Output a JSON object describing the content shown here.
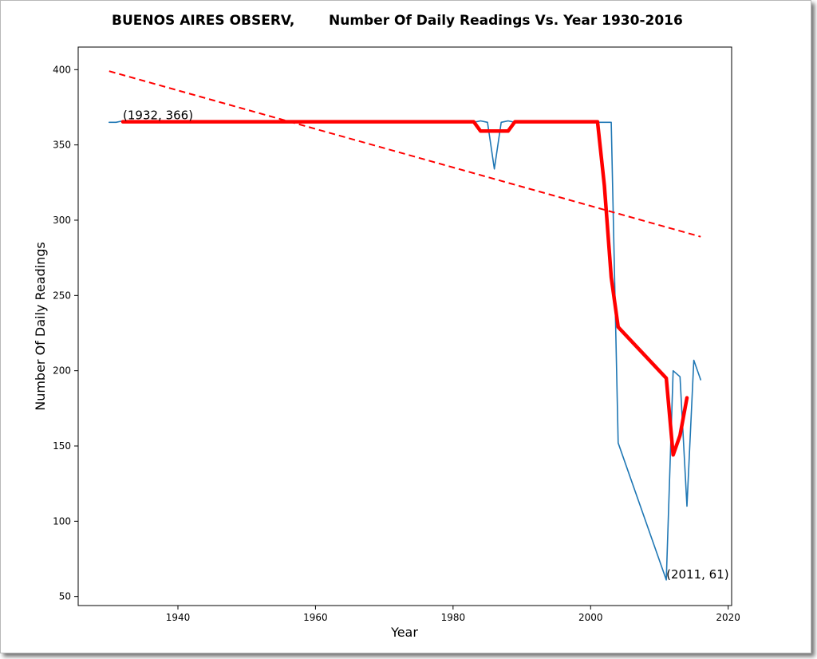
{
  "chart_data": {
    "type": "line",
    "title_left": "BUENOS AIRES OBSERV,",
    "title_right": "Number Of Daily Readings Vs. Year 1930-2016",
    "xlabel": "Year",
    "ylabel": "Number Of Daily Readings",
    "xlim": [
      1925.5,
      2020.5
    ],
    "ylim": [
      44,
      415
    ],
    "xticks": [
      1940,
      1960,
      1980,
      2000,
      2020
    ],
    "yticks": [
      50,
      100,
      150,
      200,
      250,
      300,
      350,
      400
    ],
    "grid": false,
    "series": [
      {
        "color": "#1f77b4",
        "style": "solid",
        "x": [
          1930,
          1931,
          1932,
          1933,
          1934,
          1935,
          1936,
          1937,
          1938,
          1939,
          1940,
          1941,
          1942,
          1943,
          1944,
          1945,
          1946,
          1947,
          1948,
          1949,
          1950,
          1951,
          1952,
          1953,
          1954,
          1955,
          1956,
          1957,
          1958,
          1959,
          1960,
          1961,
          1962,
          1963,
          1964,
          1965,
          1966,
          1967,
          1968,
          1969,
          1970,
          1971,
          1972,
          1973,
          1974,
          1975,
          1976,
          1977,
          1978,
          1979,
          1980,
          1981,
          1982,
          1983,
          1984,
          1985,
          1986,
          1987,
          1988,
          1989,
          1990,
          1991,
          1992,
          1993,
          1994,
          1995,
          1996,
          1997,
          1998,
          1999,
          2000,
          2001,
          2002,
          2003,
          2004,
          2011,
          2012,
          2013,
          2014,
          2015,
          2016
        ],
        "values": [
          365,
          365,
          366,
          365,
          365,
          365,
          366,
          365,
          365,
          365,
          366,
          365,
          365,
          365,
          366,
          365,
          365,
          365,
          366,
          365,
          365,
          365,
          366,
          365,
          365,
          365,
          366,
          365,
          365,
          365,
          366,
          365,
          365,
          365,
          366,
          365,
          365,
          365,
          366,
          365,
          365,
          365,
          366,
          365,
          365,
          365,
          366,
          365,
          365,
          365,
          366,
          365,
          365,
          365,
          366,
          365,
          334,
          365,
          366,
          365,
          365,
          365,
          366,
          365,
          365,
          365,
          366,
          365,
          365,
          365,
          366,
          365,
          365,
          365,
          152,
          61,
          200,
          196,
          110,
          207,
          194
        ]
      },
      {
        "color": "#ff0000",
        "style": "solid",
        "x": [
          1932,
          1937,
          1942,
          1947,
          1952,
          1957,
          1962,
          1967,
          1972,
          1977,
          1982,
          1983,
          1984,
          1985,
          1986,
          1987,
          1988,
          1989,
          1990,
          1995,
          2000,
          2001,
          2002,
          2003,
          2004,
          2011,
          2012,
          2013,
          2014
        ],
        "values": [
          365.4,
          365.4,
          365.4,
          365.4,
          365.4,
          365.4,
          365.4,
          365.4,
          365.4,
          365.4,
          365.4,
          365.4,
          359.2,
          359.2,
          359.2,
          359.2,
          359.2,
          365.4,
          365.4,
          365.4,
          365.4,
          365.4,
          323,
          262,
          229,
          195,
          144,
          157,
          182
        ]
      },
      {
        "color": "#ff0000",
        "style": "dashed",
        "x": [
          1930,
          2016
        ],
        "values": [
          399,
          289
        ]
      }
    ],
    "annotations": [
      {
        "text": "(1932, 366)",
        "x": 1932,
        "y": 366
      },
      {
        "text": "(2011, 61)",
        "x": 2011,
        "y": 61
      }
    ]
  }
}
